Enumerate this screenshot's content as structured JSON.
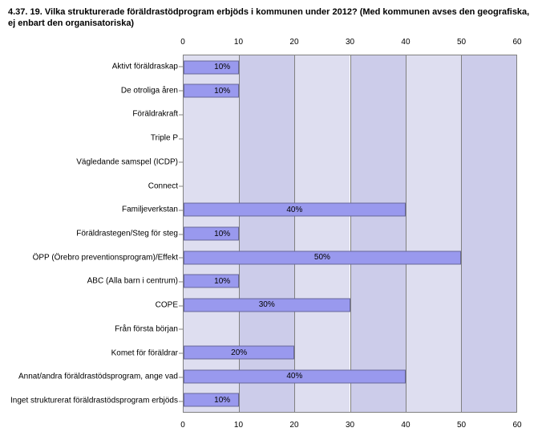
{
  "title": "4.37. 19. Vilka strukturerade föräldrastödprogram erbjöds i kommunen under 2012? (Med kommunen avses den geografiska, ej enbart den organisatoriska)",
  "chart": {
    "type": "bar",
    "orientation": "horizontal",
    "xlim": [
      0,
      60
    ],
    "xtick_step": 10,
    "xticks": [
      0,
      10,
      20,
      30,
      40,
      50,
      60
    ],
    "categories": [
      "Aktivt föräldraskap",
      "De otroliga åren",
      "Föräldrakraft",
      "Triple P",
      "Vägledande samspel (ICDP)",
      "Connect",
      "Familjeverkstan",
      "Föräldrastegen/Steg för steg",
      "ÖPP (Örebro preventionsprogram)/Effekt",
      "ABC (Alla barn i centrum)",
      "COPE",
      "Från första början",
      "Komet för föräldrar",
      "Annat/andra föräldrastödsprogram, ange vad",
      "Inget strukturerat föräldrastödsprogram erbjöds"
    ],
    "values": [
      10,
      10,
      0,
      0,
      0,
      0,
      40,
      10,
      50,
      10,
      30,
      0,
      20,
      40,
      10
    ],
    "value_labels": [
      "10%",
      "10%",
      "",
      "",
      "",
      "",
      "40%",
      "10%",
      "50%",
      "10%",
      "30%",
      "",
      "20%",
      "40%",
      "10%"
    ],
    "bar_color": "#9999ee",
    "bar_border_color": "#666699",
    "background_stripe_a": "#dedef0",
    "background_stripe_b": "#ccccea",
    "grid_color": "#808080",
    "tick_fontsize": 10,
    "label_fontsize": 10,
    "title_fontsize": 11
  }
}
